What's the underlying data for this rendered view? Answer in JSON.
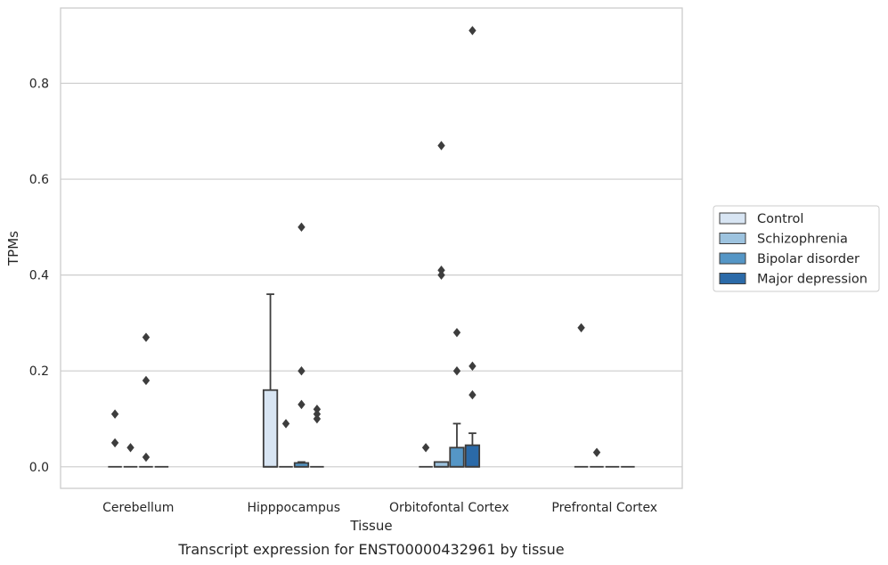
{
  "caption": "Transcript expression for ENST00000432961 by tissue",
  "chart_data": {
    "type": "box",
    "xlabel": "Tissue",
    "ylabel": "TPMs",
    "ylim": [
      -0.045,
      0.957
    ],
    "yticks": [
      0.0,
      0.2,
      0.4,
      0.6,
      0.8
    ],
    "ytick_labels": [
      "0.0",
      "0.2",
      "0.4",
      "0.6",
      "0.8"
    ],
    "grid": "horizontal",
    "legend_position": "right",
    "categories": [
      "Cerebellum",
      "Hipppocampus",
      "Orbitofontal Cortex",
      "Prefrontal Cortex"
    ],
    "series": [
      {
        "name": "Control",
        "color": "#d8e5f3",
        "boxes": [
          {
            "q1": 0.0,
            "median": 0.0,
            "q3": 0.0,
            "whisker_low": 0.0,
            "whisker_high": 0.0,
            "outliers": [
              0.11,
              0.05
            ]
          },
          {
            "q1": 0.0,
            "median": 0.0,
            "q3": 0.16,
            "whisker_low": 0.0,
            "whisker_high": 0.36,
            "outliers": []
          },
          {
            "q1": 0.0,
            "median": 0.0,
            "q3": 0.0,
            "whisker_low": 0.0,
            "whisker_high": 0.0,
            "outliers": [
              0.04
            ]
          },
          {
            "q1": 0.0,
            "median": 0.0,
            "q3": 0.0,
            "whisker_low": 0.0,
            "whisker_high": 0.0,
            "outliers": [
              0.29
            ]
          }
        ]
      },
      {
        "name": "Schizophrenia",
        "color": "#9dc3df",
        "boxes": [
          {
            "q1": 0.0,
            "median": 0.0,
            "q3": 0.0,
            "whisker_low": 0.0,
            "whisker_high": 0.0,
            "outliers": [
              0.04
            ]
          },
          {
            "q1": 0.0,
            "median": 0.0,
            "q3": 0.0,
            "whisker_low": 0.0,
            "whisker_high": 0.0,
            "outliers": [
              0.09
            ]
          },
          {
            "q1": 0.0,
            "median": 0.0,
            "q3": 0.01,
            "whisker_low": 0.0,
            "whisker_high": 0.01,
            "outliers": [
              0.67,
              0.41,
              0.4
            ]
          },
          {
            "q1": 0.0,
            "median": 0.0,
            "q3": 0.0,
            "whisker_low": 0.0,
            "whisker_high": 0.0,
            "outliers": [
              0.03
            ]
          }
        ]
      },
      {
        "name": "Bipolar disorder",
        "color": "#5596c6",
        "boxes": [
          {
            "q1": 0.0,
            "median": 0.0,
            "q3": 0.0,
            "whisker_low": 0.0,
            "whisker_high": 0.0,
            "outliers": [
              0.27,
              0.18,
              0.02
            ]
          },
          {
            "q1": 0.0,
            "median": 0.0,
            "q3": 0.008,
            "whisker_low": 0.0,
            "whisker_high": 0.01,
            "outliers": [
              0.5,
              0.2,
              0.13
            ]
          },
          {
            "q1": 0.0,
            "median": 0.0,
            "q3": 0.04,
            "whisker_low": 0.0,
            "whisker_high": 0.09,
            "outliers": [
              0.28,
              0.2
            ]
          },
          {
            "q1": 0.0,
            "median": 0.0,
            "q3": 0.0,
            "whisker_low": 0.0,
            "whisker_high": 0.0,
            "outliers": []
          }
        ]
      },
      {
        "name": "Major depression",
        "color": "#2b6aa8",
        "boxes": [
          {
            "q1": 0.0,
            "median": 0.0,
            "q3": 0.0,
            "whisker_low": 0.0,
            "whisker_high": 0.0,
            "outliers": []
          },
          {
            "q1": 0.0,
            "median": 0.0,
            "q3": 0.0,
            "whisker_low": 0.0,
            "whisker_high": 0.0,
            "outliers": [
              0.12,
              0.11,
              0.1
            ]
          },
          {
            "q1": 0.0,
            "median": 0.0,
            "q3": 0.045,
            "whisker_low": 0.0,
            "whisker_high": 0.07,
            "outliers": [
              0.91,
              0.21,
              0.15
            ]
          },
          {
            "q1": 0.0,
            "median": 0.0,
            "q3": 0.0,
            "whisker_low": 0.0,
            "whisker_high": 0.0,
            "outliers": []
          }
        ]
      }
    ]
  }
}
